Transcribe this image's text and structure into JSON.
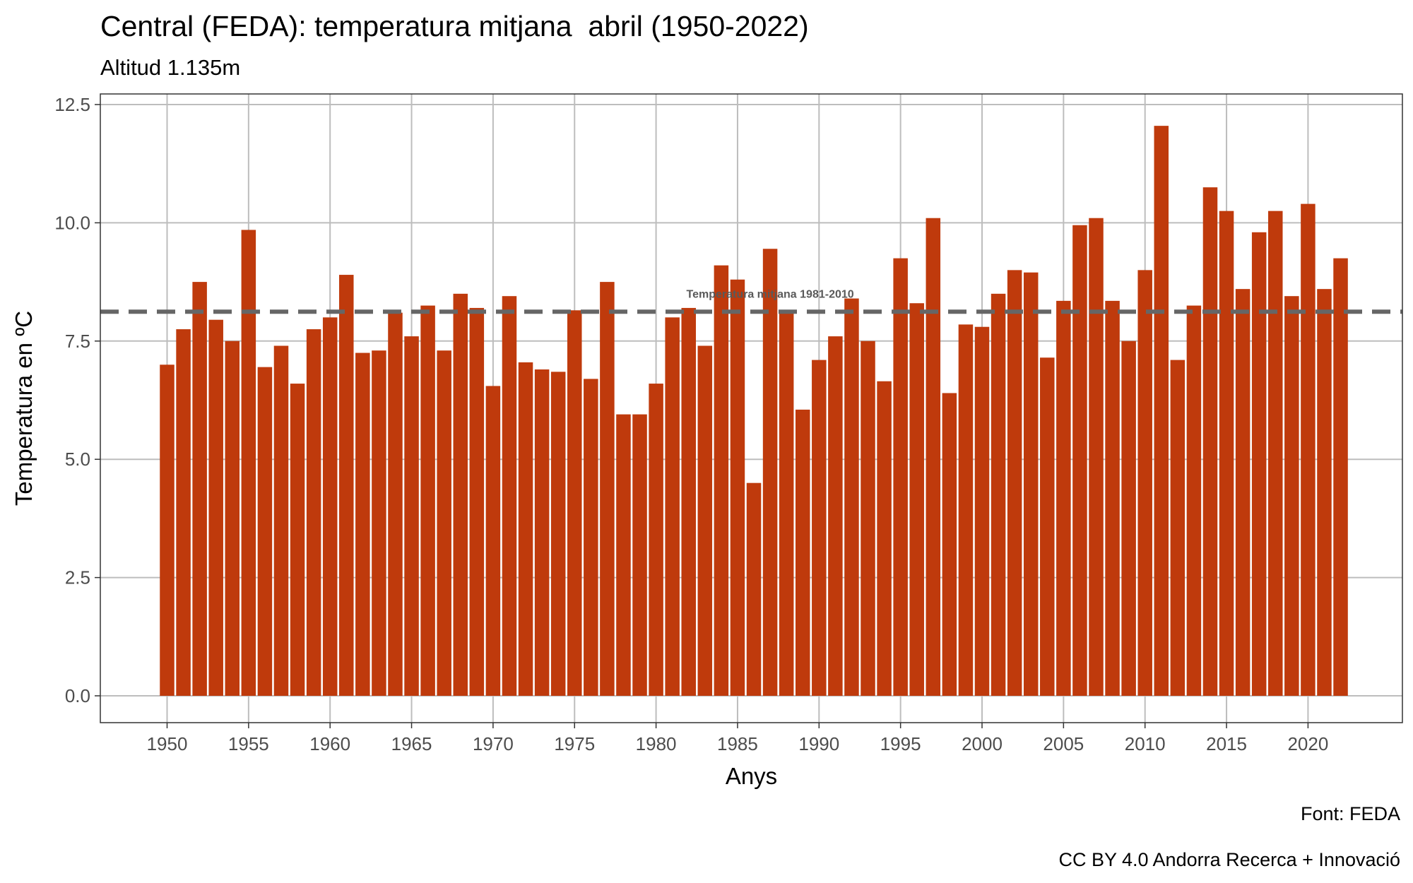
{
  "chart_data": {
    "type": "bar",
    "title": "Central (FEDA): temperatura mitjana  abril (1950-2022)",
    "subtitle": "Altitud 1.135m",
    "xlabel": "Anys",
    "ylabel": "Temperatura en ºC",
    "ylim": [
      0,
      12.5
    ],
    "yticks": [
      "0.0",
      "2.5",
      "5.0",
      "7.5",
      "10.0",
      "12.5"
    ],
    "xticks": [
      "1950",
      "1955",
      "1960",
      "1965",
      "1970",
      "1975",
      "1980",
      "1985",
      "1990",
      "1995",
      "2000",
      "2005",
      "2010",
      "2015",
      "2020"
    ],
    "grid": true,
    "bar_color": "#bf3a0c",
    "years": [
      1950,
      1951,
      1952,
      1953,
      1954,
      1955,
      1956,
      1957,
      1958,
      1959,
      1960,
      1961,
      1962,
      1963,
      1964,
      1965,
      1966,
      1967,
      1968,
      1969,
      1970,
      1971,
      1972,
      1973,
      1974,
      1975,
      1976,
      1977,
      1978,
      1979,
      1980,
      1981,
      1982,
      1983,
      1984,
      1985,
      1986,
      1987,
      1988,
      1989,
      1990,
      1991,
      1992,
      1993,
      1994,
      1995,
      1996,
      1997,
      1998,
      1999,
      2000,
      2001,
      2002,
      2003,
      2004,
      2005,
      2006,
      2007,
      2008,
      2009,
      2010,
      2011,
      2012,
      2013,
      2014,
      2015,
      2016,
      2017,
      2018,
      2019,
      2020,
      2021,
      2022
    ],
    "values": [
      7.0,
      7.75,
      8.75,
      7.95,
      7.5,
      9.85,
      6.95,
      7.4,
      6.6,
      7.75,
      8.0,
      8.9,
      7.25,
      7.3,
      8.1,
      7.6,
      8.25,
      7.3,
      8.5,
      8.2,
      6.55,
      8.45,
      7.05,
      6.9,
      6.85,
      8.15,
      6.7,
      8.75,
      5.95,
      5.95,
      6.6,
      8.0,
      8.2,
      7.4,
      9.1,
      8.8,
      4.5,
      9.45,
      8.1,
      6.05,
      7.1,
      7.6,
      8.4,
      7.5,
      6.65,
      9.25,
      8.3,
      10.1,
      6.4,
      7.85,
      7.8,
      8.5,
      9.0,
      8.95,
      7.15,
      8.35,
      9.95,
      10.1,
      8.35,
      7.5,
      9.0,
      12.05,
      7.1,
      8.25,
      10.75,
      10.25,
      8.6,
      9.8,
      10.25,
      8.45,
      10.4,
      8.6,
      9.25
    ],
    "reference_line": {
      "value": 8.12,
      "label": "Temperatura mitjana 1981-2010",
      "color": "#666666"
    }
  },
  "captions": {
    "source": "Font: FEDA",
    "license": "CC BY 4.0 Andorra Recerca + Innovació"
  }
}
